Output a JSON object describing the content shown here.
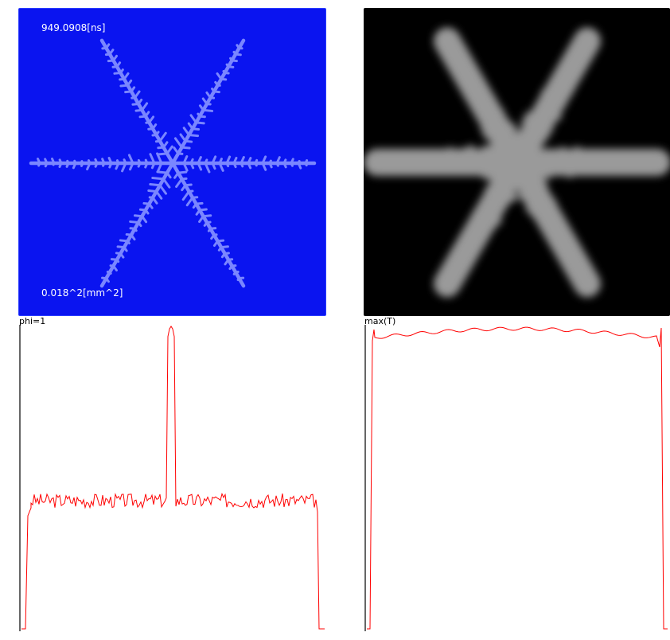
{
  "blue_panel": {
    "time_label": "949.0908[ns]",
    "area_label": "0.018^2[mm^2]",
    "background": "#0a14f0",
    "crystal_color": "#7a86ff"
  },
  "gray_panel": {
    "background": "#000000",
    "crystal_color": "#9a9a9a"
  },
  "plots": {
    "left_title": "phi=1",
    "right_title": "max(T)",
    "line_color": "#ff0000"
  }
}
